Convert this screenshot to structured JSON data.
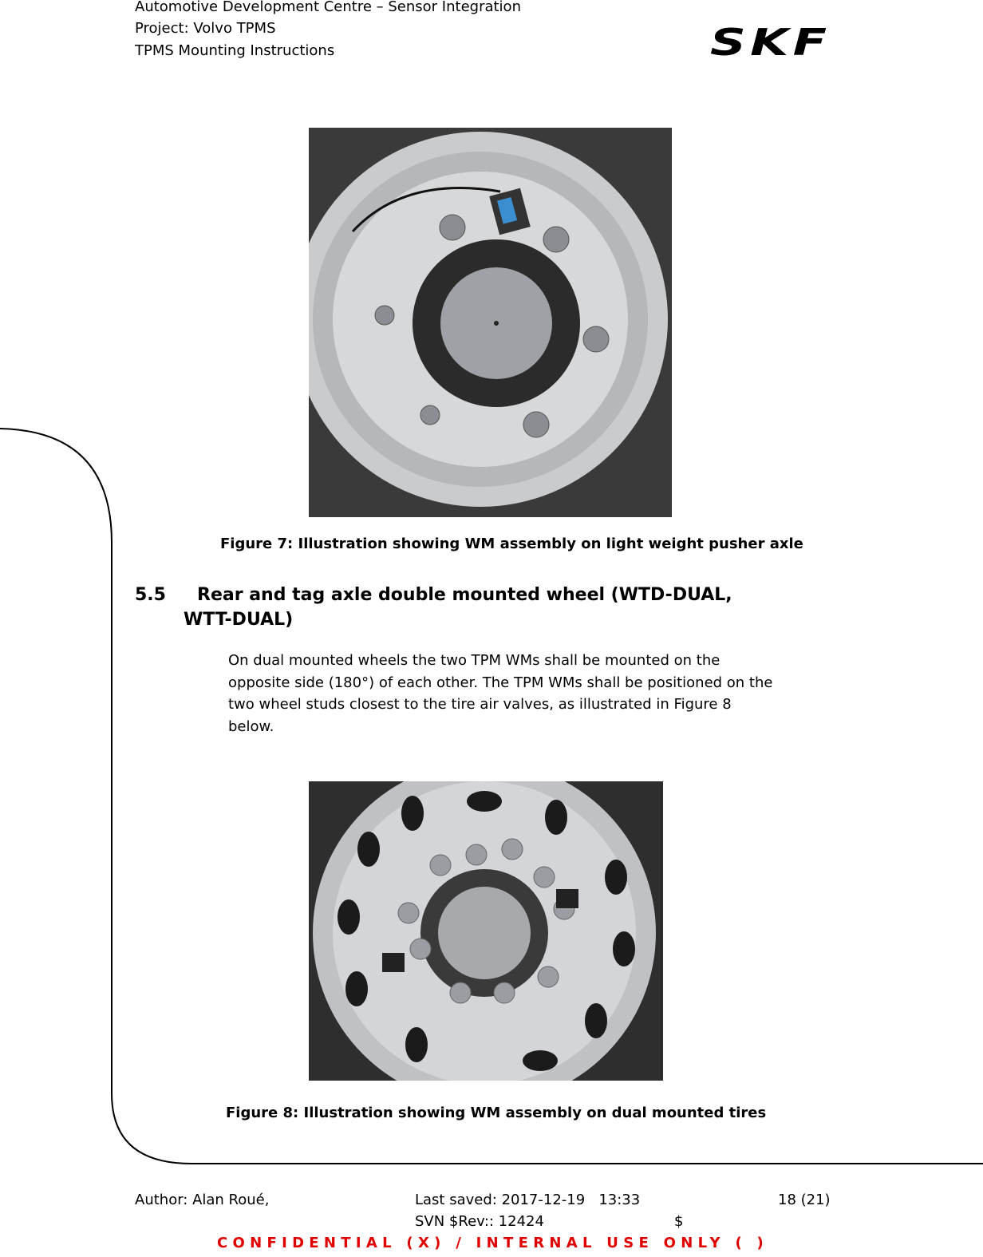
{
  "header": {
    "lines": [
      "Automotive Development Centre – Sensor Integration",
      "Project: Volvo TPMS",
      "TPMS Mounting Instructions"
    ],
    "logo": "SKF"
  },
  "figures": [
    {
      "caption": "Figure 7: Illustration showing WM assembly on light weight pusher axle"
    },
    {
      "caption": "Figure 8: Illustration showing WM assembly on dual mounted tires"
    }
  ],
  "section": {
    "number": "5.5",
    "title_lines": [
      "Rear and tag axle double mounted wheel (WTD-DUAL,",
      "WTT-DUAL)"
    ],
    "paragraph_lines": [
      "On dual mounted wheels the two TPM WMs shall be mounted on the",
      "opposite side (180°) of each other. The TPM WMs shall be positioned on the",
      "two wheel studs closest to the tire air valves, as illustrated in Figure 8",
      "below."
    ]
  },
  "footer": {
    "author": "Author: Alan Roué,",
    "last_saved": "Last saved: 2017-12-19   13:33",
    "page": "18 (21)",
    "svn": "SVN $Rev:: 12424",
    "svn_end": "$",
    "confidential": "CONFIDENTIAL (X) / INTERNAL USE ONLY ( )"
  }
}
